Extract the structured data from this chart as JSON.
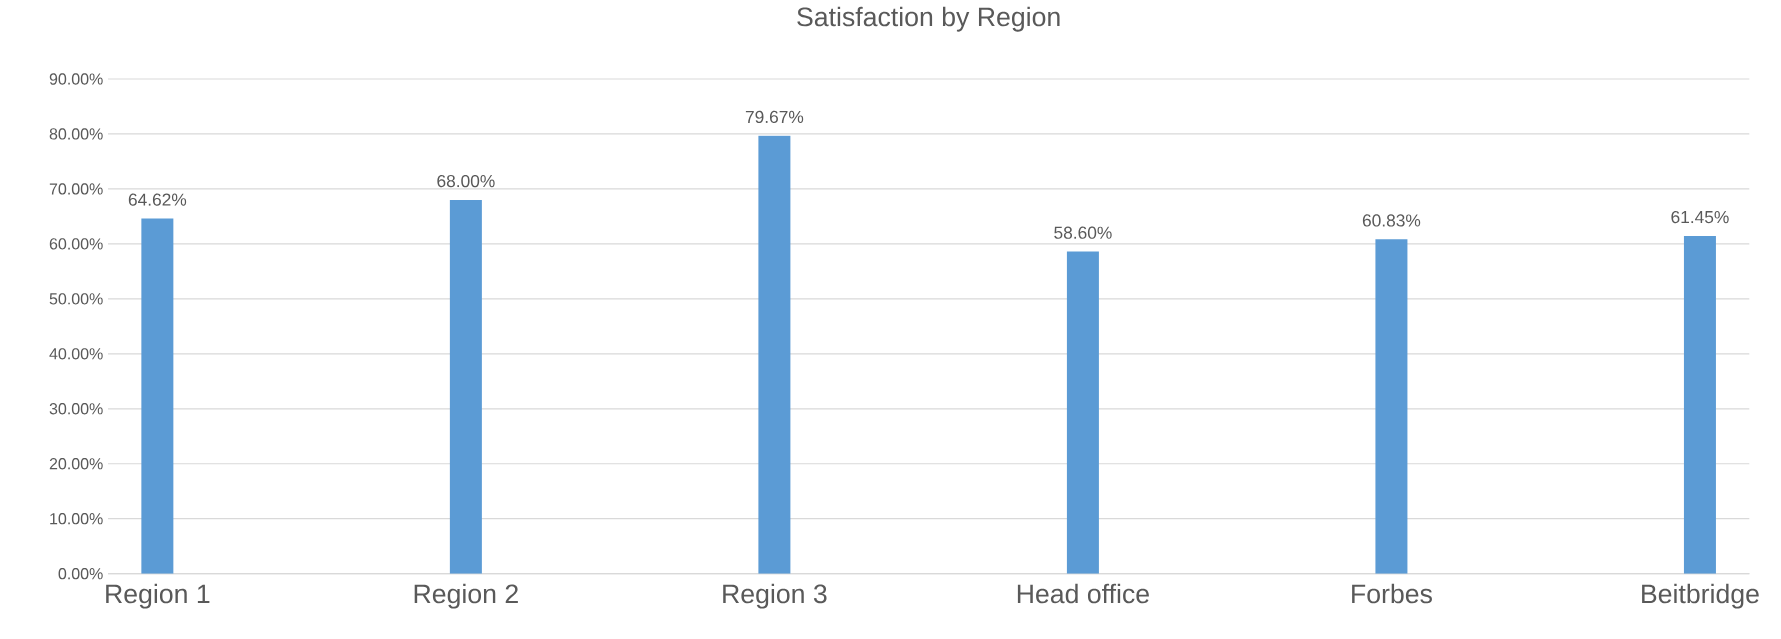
{
  "chart_data": {
    "type": "bar",
    "title": "Satisfaction by Region",
    "categories": [
      "Region 1",
      "Region 2",
      "Region 3",
      "Head office",
      "Forbes",
      "Beitbridge"
    ],
    "values": [
      64.62,
      68.0,
      79.67,
      58.6,
      60.83,
      61.45
    ],
    "value_labels": [
      "64.62%",
      "68.00%",
      "79.67%",
      "58.60%",
      "60.83%",
      "61.45%"
    ],
    "color": "#5b9bd5",
    "ylim": [
      0,
      90
    ],
    "yticks": [
      {
        "value": 0,
        "label": "0.00%"
      },
      {
        "value": 10,
        "label": "10.00%"
      },
      {
        "value": 20,
        "label": "20.00%"
      },
      {
        "value": 30,
        "label": "30.00%"
      },
      {
        "value": 40,
        "label": "40.00%"
      },
      {
        "value": 50,
        "label": "50.00%"
      },
      {
        "value": 60,
        "label": "60.00%"
      },
      {
        "value": 70,
        "label": "70.00%"
      },
      {
        "value": 80,
        "label": "80.00%"
      },
      {
        "value": 90,
        "label": "90.00%"
      }
    ],
    "grid": "y"
  }
}
